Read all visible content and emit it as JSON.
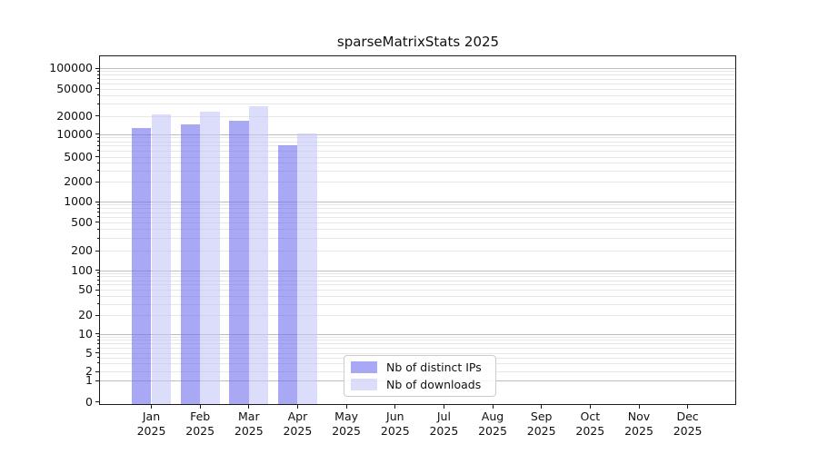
{
  "title": "sparseMatrixStats 2025",
  "chart_data": {
    "type": "bar",
    "title": "sparseMatrixStats 2025",
    "categories": [
      "Jan",
      "Feb",
      "Mar",
      "Apr",
      "May",
      "Jun",
      "Jul",
      "Aug",
      "Sep",
      "Oct",
      "Nov",
      "Dec"
    ],
    "x_year": "2025",
    "series": [
      {
        "name": "Nb of distinct IPs",
        "color": "rgba(110,110,237,0.6)",
        "values": [
          12700,
          14300,
          16500,
          7000,
          0,
          0,
          0,
          0,
          0,
          0,
          0,
          0
        ]
      },
      {
        "name": "Nb of downloads",
        "color": "rgba(197,197,248,0.6)",
        "values": [
          21000,
          23000,
          27300,
          10200,
          0,
          0,
          0,
          0,
          0,
          0,
          0,
          0
        ]
      }
    ],
    "y_ticks": [
      "0",
      "1",
      "2",
      "5",
      "10",
      "20",
      "50",
      "100",
      "200",
      "500",
      "1000",
      "2000",
      "5000",
      "10000",
      "20000",
      "50000",
      "100000"
    ],
    "yscale": "symlog",
    "ylim": [
      0,
      150000
    ],
    "xlabel": "",
    "ylabel": "",
    "grid": "both",
    "legend_position": "lower-center-left"
  },
  "legend": {
    "items": [
      {
        "label": "Nb of distinct IPs",
        "color": "rgba(110,110,237,0.6)"
      },
      {
        "label": "Nb of downloads",
        "color": "rgba(197,197,248,0.6)"
      }
    ]
  }
}
